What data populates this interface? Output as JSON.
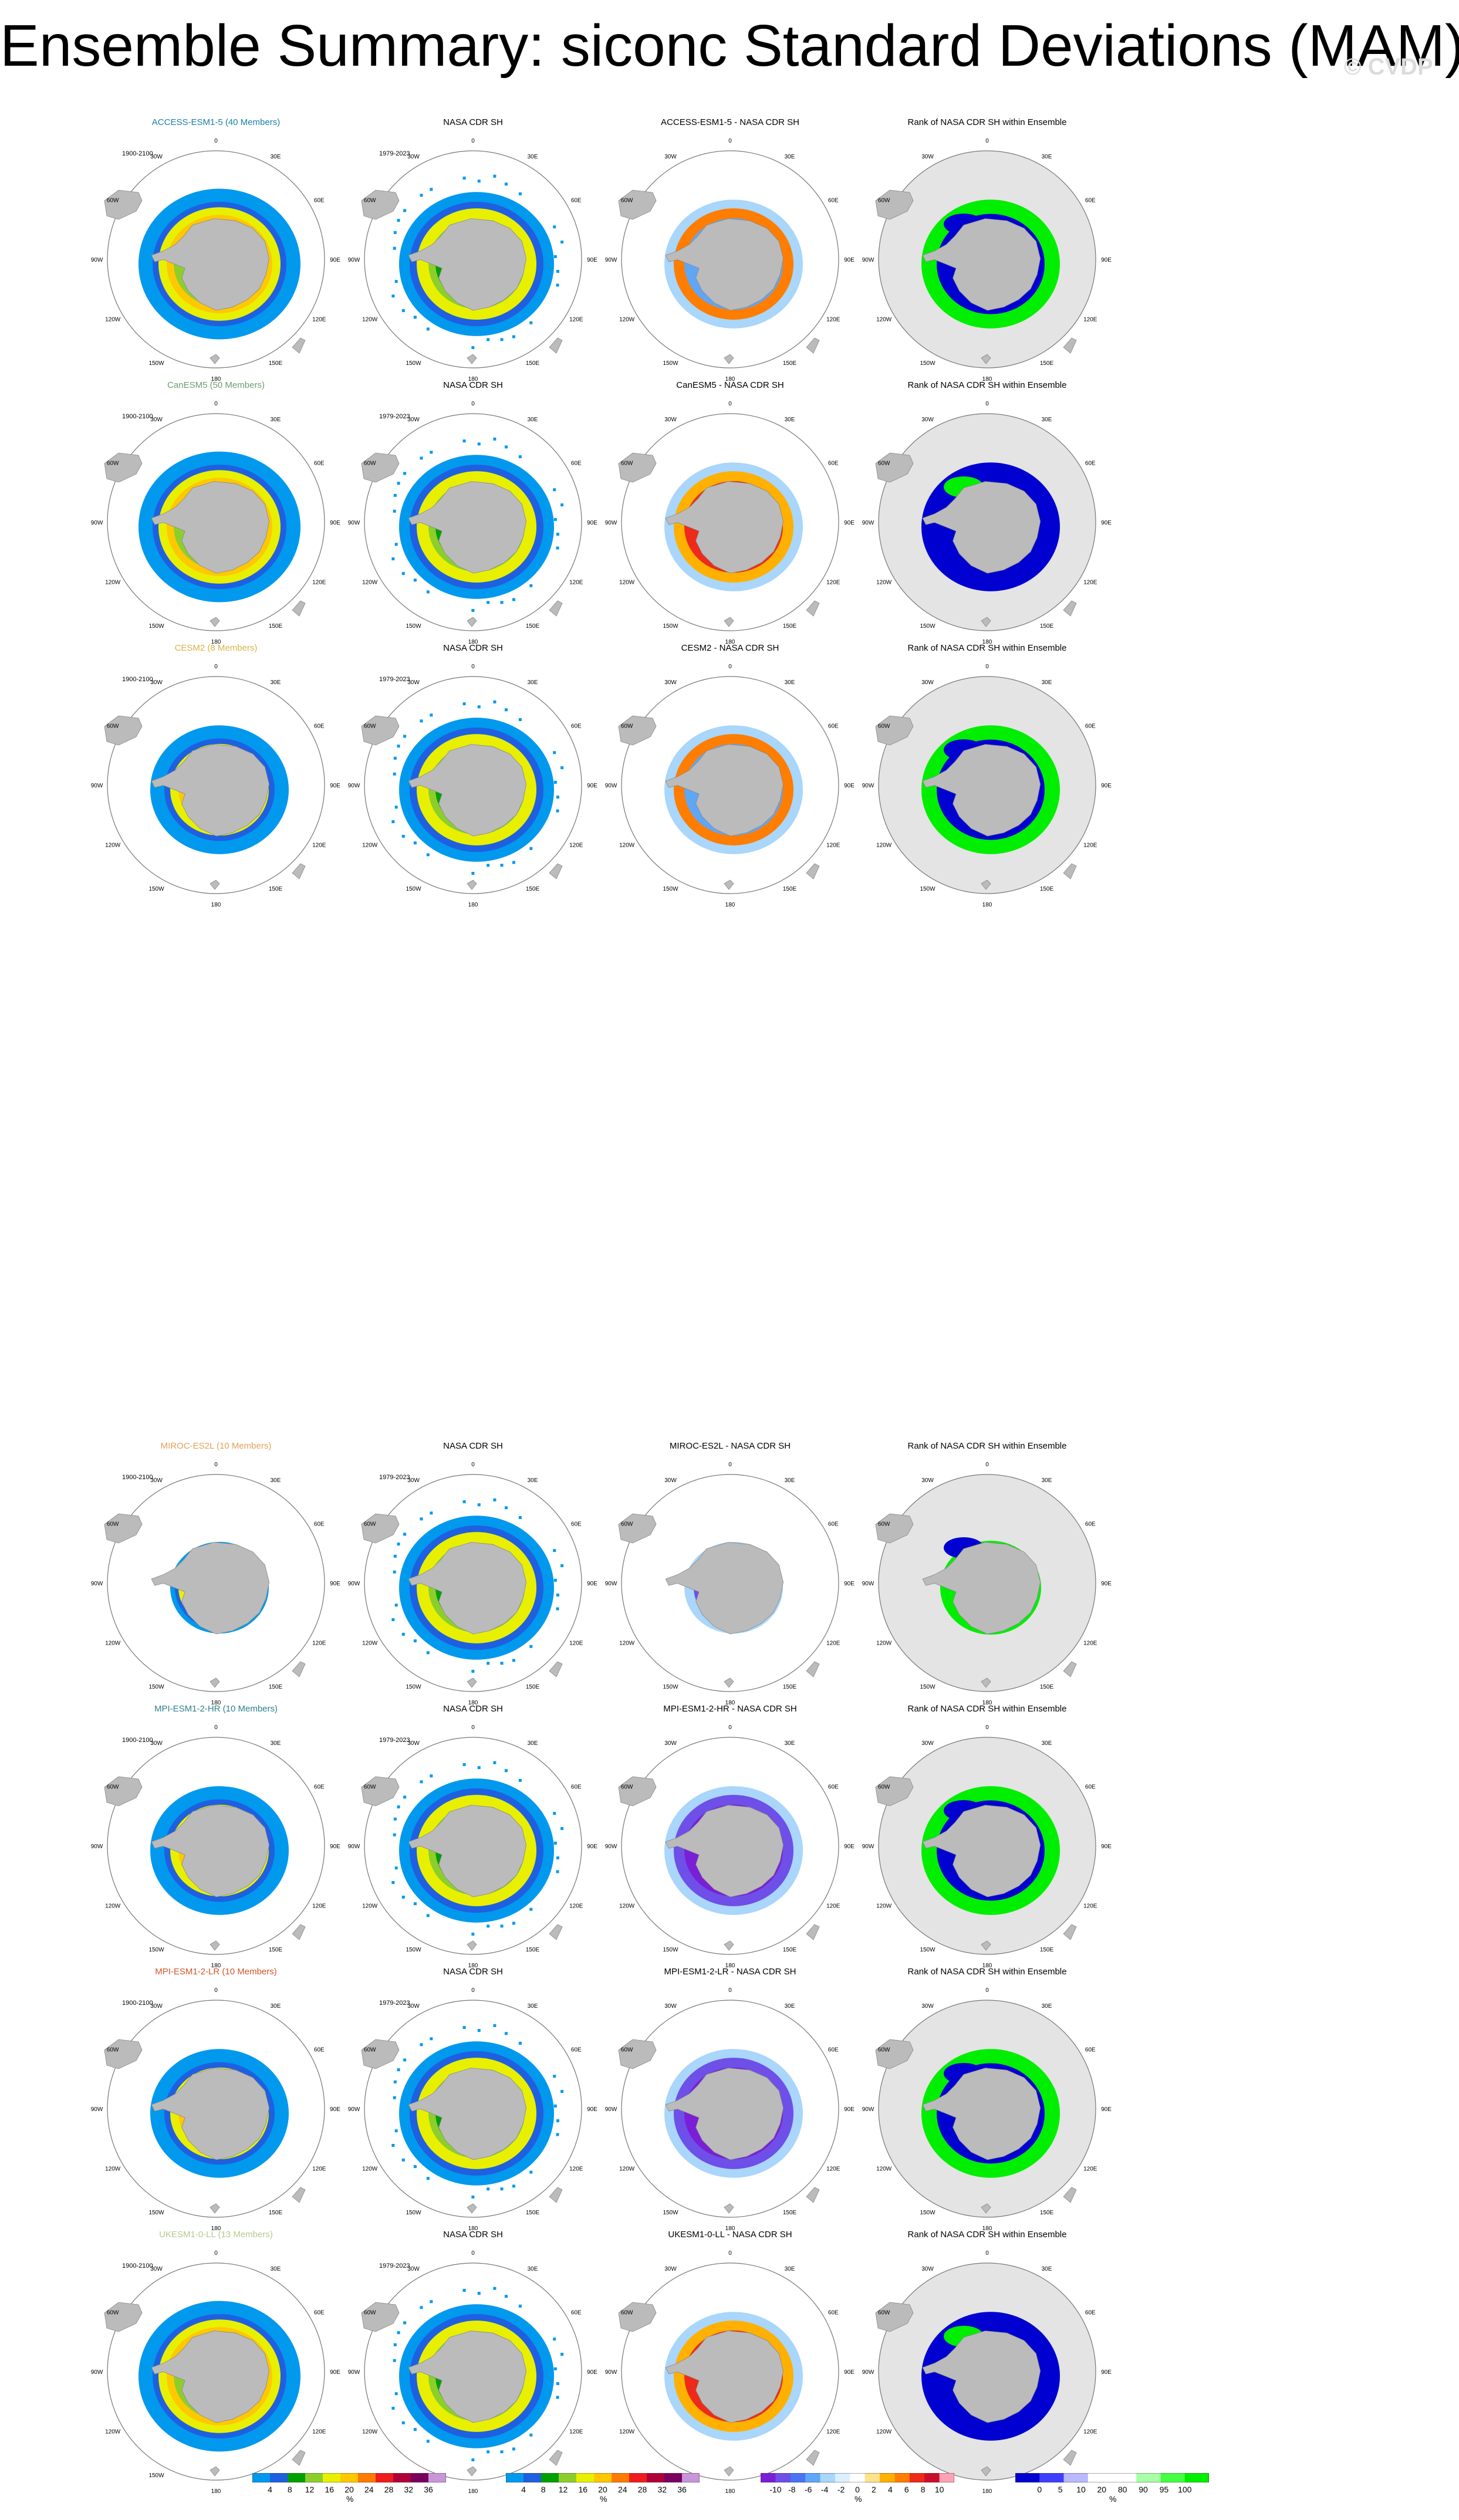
{
  "title": "Ensemble Summary: siconc Standard Deviations (MAM)",
  "watermark": "© CVDP",
  "period_label": "1900-2100",
  "obs_period_label": "1979-2023",
  "obs_title": "NASA CDR SH",
  "rank_title": "Rank of NASA CDR SH within Ensemble",
  "lon_labels": [
    "0",
    "30E",
    "60E",
    "90E",
    "120E",
    "150E",
    "180",
    "150W",
    "120W",
    "90W",
    "60W",
    "30W"
  ],
  "colors": {
    "land": "#bbbbbb",
    "rank_bg": "#e4e4e4",
    "ocean": "#ffffff"
  },
  "models": [
    {
      "name": "ACCESS-ESM1-5 (40 Members)",
      "color": "#1a7fa6",
      "diff_title": "ACCESS-ESM1-5 - NASA CDR SH",
      "spread": "wide",
      "diff_sign": "mixed",
      "rank": "high"
    },
    {
      "name": "CanESM5 (50 Members)",
      "color": "#6b9e6b",
      "diff_title": "CanESM5 - NASA CDR SH",
      "spread": "wide",
      "diff_sign": "positive",
      "rank": "low"
    },
    {
      "name": "CESM2 (8 Members)",
      "color": "#d9b24a",
      "diff_title": "CESM2 - NASA CDR SH",
      "spread": "medium",
      "diff_sign": "mixed",
      "rank": "high"
    },
    {
      "name": "MIROC-ES2L (10 Members)",
      "color": "#e0a25a",
      "diff_title": "MIROC-ES2L - NASA CDR SH",
      "spread": "narrow",
      "diff_sign": "negative",
      "rank": "high"
    },
    {
      "name": "MPI-ESM1-2-HR (10 Members)",
      "color": "#2e7f8f",
      "diff_title": "MPI-ESM1-2-HR - NASA CDR SH",
      "spread": "medium",
      "diff_sign": "negative",
      "rank": "high"
    },
    {
      "name": "MPI-ESM1-2-LR (10 Members)",
      "color": "#d2552a",
      "diff_title": "MPI-ESM1-2-LR - NASA CDR SH",
      "spread": "medium",
      "diff_sign": "negative",
      "rank": "high"
    },
    {
      "name": "UKESM1-0-LL (13 Members)",
      "color": "#b6c98e",
      "diff_title": "UKESM1-0-LL - NASA CDR SH",
      "spread": "wide",
      "diff_sign": "positive",
      "rank": "low"
    }
  ],
  "colorbars": [
    {
      "id": "std",
      "labels": [
        "4",
        "8",
        "12",
        "16",
        "20",
        "24",
        "28",
        "32",
        "36"
      ],
      "unit": "%",
      "colors": [
        "#0099ee",
        "#1f60e0",
        "#00a000",
        "#8ccf2c",
        "#e8f000",
        "#ffc800",
        "#ff7a00",
        "#ee1c1c",
        "#b00038",
        "#7a0060",
        "#c896d8"
      ]
    },
    {
      "id": "std_obs",
      "labels": [
        "4",
        "8",
        "12",
        "16",
        "20",
        "24",
        "28",
        "32",
        "36"
      ],
      "unit": "%",
      "colors": [
        "#0099ee",
        "#1f60e0",
        "#00a000",
        "#8ccf2c",
        "#e8f000",
        "#ffc800",
        "#ff7a00",
        "#ee1c1c",
        "#b00038",
        "#7a0060",
        "#c896d8"
      ]
    },
    {
      "id": "diff",
      "labels": [
        "-10",
        "-8",
        "-6",
        "-4",
        "-2",
        "0",
        "2",
        "4",
        "6",
        "8",
        "10"
      ],
      "unit": "%",
      "colors": [
        "#7a1fd6",
        "#6e4fe8",
        "#4a74f2",
        "#5fa6f7",
        "#a9d6fa",
        "#dcefff",
        "#ffffff",
        "#ffe28a",
        "#ffb000",
        "#ff7d00",
        "#ee2a1a",
        "#c8102e",
        "#ffa3b4"
      ]
    },
    {
      "id": "rank",
      "labels": [
        "0",
        "5",
        "10",
        "20",
        "80",
        "90",
        "95",
        "100"
      ],
      "unit": "%",
      "colors": [
        "#0000d0",
        "#3f3fff",
        "#b9b9ff",
        "#ffffff",
        "#ffffff",
        "#a8ffa8",
        "#44ff44",
        "#00ee00"
      ]
    }
  ]
}
